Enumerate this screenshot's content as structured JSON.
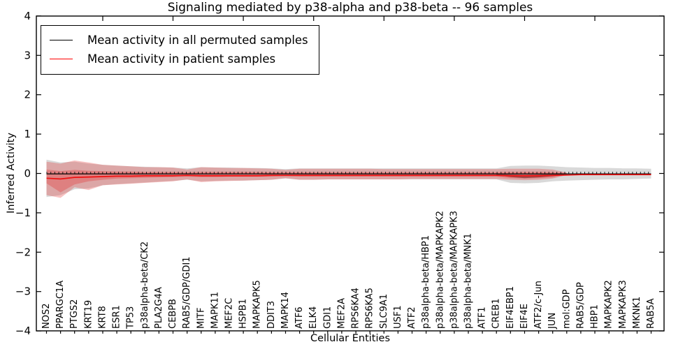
{
  "chart_data": {
    "type": "line",
    "title": "Signaling mediated by p38-alpha and p38-beta -- 96 samples",
    "xlabel": "Cellular Entities",
    "ylabel": "Inferred Activity",
    "ylim": [
      -4,
      4
    ],
    "yticks": [
      4,
      3,
      2,
      1,
      0,
      -1,
      -2,
      -3,
      -4
    ],
    "grid": false,
    "legend_position": "upper left",
    "legend": {
      "items": [
        {
          "label": "Mean activity in all permuted samples",
          "color": "#000000"
        },
        {
          "label": "Mean activity in patient samples",
          "color": "#ff0000"
        }
      ]
    },
    "categories": [
      "NOS2",
      "PPARGC1A",
      "PTGS2",
      "KRT19",
      "KRT8",
      "ESR1",
      "TP53",
      "p38alpha-beta/CK2",
      "PLA2G4A",
      "CEBPB",
      "RAB5/GDP/GDI1",
      "MITF",
      "MAPK11",
      "MEF2C",
      "HSPB1",
      "MAPKAPK5",
      "DDIT3",
      "MAPK14",
      "ATF6",
      "ELK4",
      "GDI1",
      "MEF2A",
      "RPS6KA4",
      "RPS6KA5",
      "SLC9A1",
      "USF1",
      "ATF2",
      "p38alpha-beta/HBP1",
      "p38alpha-beta/MAPKAPK2",
      "p38alpha-beta/MAPKAPK3",
      "p38alpha-beta/MNK1",
      "ATF1",
      "CREB1",
      "EIF4EBP1",
      "EIF4E",
      "ATF2/c-Jun",
      "JUN",
      "mol:GDP",
      "RAB5/GDP",
      "HBP1",
      "MAPKAPK2",
      "MAPKAPK3",
      "MKNK1",
      "RAB5A"
    ],
    "top_tick_indices": [
      4,
      9,
      14,
      19,
      24,
      29,
      34,
      39
    ],
    "series": [
      {
        "name": "permuted-range-band",
        "type": "band",
        "color": "rgba(130,130,130,0.30)",
        "upper": [
          0.35,
          0.28,
          0.3,
          0.25,
          0.22,
          0.2,
          0.18,
          0.17,
          0.16,
          0.15,
          0.13,
          0.16,
          0.15,
          0.15,
          0.14,
          0.14,
          0.13,
          0.11,
          0.13,
          0.13,
          0.13,
          0.13,
          0.13,
          0.13,
          0.13,
          0.13,
          0.13,
          0.13,
          0.13,
          0.13,
          0.13,
          0.13,
          0.13,
          0.19,
          0.2,
          0.2,
          0.18,
          0.16,
          0.15,
          0.14,
          0.14,
          0.13,
          0.13,
          0.12
        ],
        "lower": [
          -0.6,
          -0.55,
          -0.4,
          -0.38,
          -0.3,
          -0.27,
          -0.25,
          -0.23,
          -0.21,
          -0.19,
          -0.16,
          -0.2,
          -0.19,
          -0.18,
          -0.18,
          -0.17,
          -0.16,
          -0.13,
          -0.16,
          -0.16,
          -0.15,
          -0.15,
          -0.15,
          -0.15,
          -0.15,
          -0.15,
          -0.15,
          -0.15,
          -0.15,
          -0.15,
          -0.15,
          -0.15,
          -0.15,
          -0.24,
          -0.25,
          -0.24,
          -0.2,
          -0.18,
          -0.17,
          -0.16,
          -0.15,
          -0.15,
          -0.14,
          -0.13
        ]
      },
      {
        "name": "patient-outer-band",
        "type": "band",
        "color": "rgba(228,50,50,0.30)",
        "upper": [
          0.3,
          0.25,
          0.33,
          0.28,
          0.22,
          0.2,
          0.18,
          0.16,
          0.16,
          0.15,
          0.1,
          0.16,
          0.15,
          0.14,
          0.14,
          0.13,
          0.12,
          0.09,
          0.12,
          0.12,
          0.12,
          0.12,
          0.12,
          0.12,
          0.11,
          0.11,
          0.11,
          0.11,
          0.11,
          0.11,
          0.11,
          0.11,
          0.11,
          0.12,
          0.12,
          0.12,
          0.1,
          0.02
        ],
        "lower": [
          -0.55,
          -0.62,
          -0.35,
          -0.42,
          -0.3,
          -0.28,
          -0.26,
          -0.24,
          -0.22,
          -0.2,
          -0.15,
          -0.22,
          -0.2,
          -0.19,
          -0.18,
          -0.17,
          -0.16,
          -0.12,
          -0.16,
          -0.16,
          -0.15,
          -0.15,
          -0.15,
          -0.15,
          -0.15,
          -0.15,
          -0.14,
          -0.14,
          -0.14,
          -0.14,
          -0.14,
          -0.14,
          -0.14,
          -0.16,
          -0.17,
          -0.16,
          -0.13,
          -0.04
        ]
      },
      {
        "name": "patient-inner-band",
        "type": "band",
        "color": "rgba(228,50,50,0.32)",
        "upper": [
          0.1,
          0.06,
          0.09,
          0.07,
          0.06,
          0.05,
          0.05,
          0.04,
          0.04,
          0.04,
          0.03,
          0.04,
          0.04,
          0.04,
          0.04,
          0.04,
          0.03,
          0.03,
          0.03,
          0.03,
          0.03,
          0.03,
          0.03,
          0.03,
          0.03,
          0.03,
          0.03,
          0.03,
          0.03,
          0.03,
          0.03,
          0.03,
          0.03,
          0.04,
          0.04,
          0.04,
          0.03,
          0.01
        ],
        "lower": [
          -0.25,
          -0.48,
          -0.28,
          -0.2,
          -0.16,
          -0.13,
          -0.12,
          -0.11,
          -0.1,
          -0.09,
          -0.08,
          -0.09,
          -0.09,
          -0.08,
          -0.08,
          -0.08,
          -0.08,
          -0.07,
          -0.08,
          -0.08,
          -0.08,
          -0.08,
          -0.08,
          -0.08,
          -0.08,
          -0.08,
          -0.08,
          -0.08,
          -0.08,
          -0.08,
          -0.08,
          -0.08,
          -0.08,
          -0.12,
          -0.13,
          -0.12,
          -0.1,
          -0.03
        ]
      },
      {
        "name": "patient-dark-segment",
        "type": "band",
        "color": "rgba(80,10,10,0.45)",
        "x": [
          32,
          33,
          34,
          35,
          36,
          36.8
        ],
        "upper": [
          -0.02,
          -0.03,
          -0.04,
          -0.03,
          -0.02,
          -0.02
        ],
        "lower": [
          -0.04,
          -0.09,
          -0.12,
          -0.1,
          -0.07,
          -0.05
        ]
      },
      {
        "name": "permuted-sample-markers",
        "type": "tickmarks",
        "color": "#1a1a1a",
        "value": 0.02
      },
      {
        "name": "Mean activity in all permuted samples",
        "type": "line",
        "color": "#000000",
        "width": 1.2,
        "values": [
          -0.01,
          -0.01,
          -0.01,
          -0.01,
          -0.01,
          -0.01,
          -0.01,
          -0.01,
          -0.01,
          -0.01,
          -0.01,
          -0.01,
          -0.01,
          -0.01,
          -0.01,
          -0.01,
          -0.01,
          -0.01,
          -0.01,
          -0.01,
          -0.01,
          -0.01,
          -0.01,
          -0.01,
          -0.01,
          -0.01,
          -0.01,
          -0.01,
          -0.01,
          -0.01,
          -0.01,
          -0.01,
          -0.01,
          -0.01,
          -0.01,
          -0.01,
          -0.01,
          -0.01,
          -0.01,
          -0.01,
          -0.01,
          -0.01,
          -0.01,
          -0.01
        ]
      },
      {
        "name": "Mean activity in patient samples",
        "type": "line",
        "color": "#ee1111",
        "width": 1.7,
        "values": [
          -0.12,
          -0.14,
          -0.1,
          -0.09,
          -0.08,
          -0.07,
          -0.07,
          -0.06,
          -0.06,
          -0.06,
          -0.05,
          -0.06,
          -0.06,
          -0.06,
          -0.06,
          -0.06,
          -0.05,
          -0.05,
          -0.05,
          -0.05,
          -0.05,
          -0.05,
          -0.05,
          -0.05,
          -0.05,
          -0.05,
          -0.05,
          -0.05,
          -0.05,
          -0.05,
          -0.05,
          -0.05,
          -0.05,
          -0.06,
          -0.06,
          -0.06,
          -0.05,
          -0.04,
          -0.03,
          -0.03,
          -0.03,
          -0.03,
          -0.03,
          -0.03
        ]
      }
    ]
  }
}
